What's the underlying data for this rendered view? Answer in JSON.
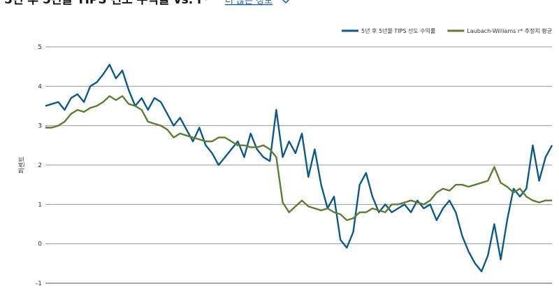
{
  "chart_data": {
    "type": "line",
    "title": "5년 후 5년물 TIPS 선도 수익률 vs. r*",
    "link_text": "더 많은 정보",
    "y_label": "퍼센트",
    "ylim": [
      -1,
      5
    ],
    "yticks": [
      -1,
      0,
      1,
      2,
      3,
      4,
      5
    ],
    "grid": true,
    "series": [
      {
        "name": "5년 후 5년물 TIPS 선도 수익률",
        "color": "#0b5a8c",
        "values": [
          3.5,
          3.55,
          3.6,
          3.4,
          3.7,
          3.8,
          3.6,
          4.0,
          4.1,
          4.3,
          4.55,
          4.2,
          4.4,
          3.9,
          3.5,
          3.7,
          3.4,
          3.7,
          3.6,
          3.3,
          3.0,
          3.2,
          2.9,
          2.6,
          2.95,
          2.5,
          2.3,
          2.0,
          2.2,
          2.4,
          2.6,
          2.2,
          2.8,
          2.4,
          2.2,
          2.1,
          3.4,
          2.2,
          2.6,
          2.3,
          2.8,
          1.7,
          2.4,
          1.5,
          0.9,
          1.2,
          0.1,
          -0.1,
          0.3,
          1.5,
          1.8,
          1.2,
          0.8,
          1.0,
          0.8,
          0.9,
          1.0,
          0.8,
          1.1,
          0.9,
          1.0,
          0.6,
          0.9,
          1.1,
          0.8,
          0.2,
          -0.2,
          -0.5,
          -0.7,
          -0.3,
          0.5,
          -0.4,
          0.6,
          1.4,
          1.2,
          1.4,
          2.5,
          1.6,
          2.2,
          2.5
        ]
      },
      {
        "name": "Laubach-Williams r* 추정치 평균",
        "color": "#5b7f2e",
        "values": [
          2.95,
          2.95,
          3.0,
          3.1,
          3.3,
          3.4,
          3.35,
          3.45,
          3.5,
          3.6,
          3.75,
          3.65,
          3.75,
          3.55,
          3.5,
          3.4,
          3.1,
          3.05,
          3.0,
          2.9,
          2.7,
          2.8,
          2.75,
          2.7,
          2.65,
          2.6,
          2.6,
          2.7,
          2.7,
          2.6,
          2.5,
          2.5,
          2.45,
          2.45,
          2.5,
          2.4,
          2.2,
          1.05,
          0.8,
          0.95,
          1.1,
          0.95,
          0.9,
          0.85,
          0.9,
          0.8,
          0.75,
          0.6,
          0.65,
          0.8,
          0.8,
          0.9,
          0.85,
          0.8,
          1.0,
          1.0,
          1.05,
          1.1,
          1.05,
          1.0,
          1.1,
          1.3,
          1.4,
          1.35,
          1.5,
          1.5,
          1.45,
          1.5,
          1.55,
          1.6,
          1.95,
          1.55,
          1.45,
          1.3,
          1.4,
          1.2,
          1.1,
          1.05,
          1.1,
          1.1
        ]
      }
    ]
  }
}
